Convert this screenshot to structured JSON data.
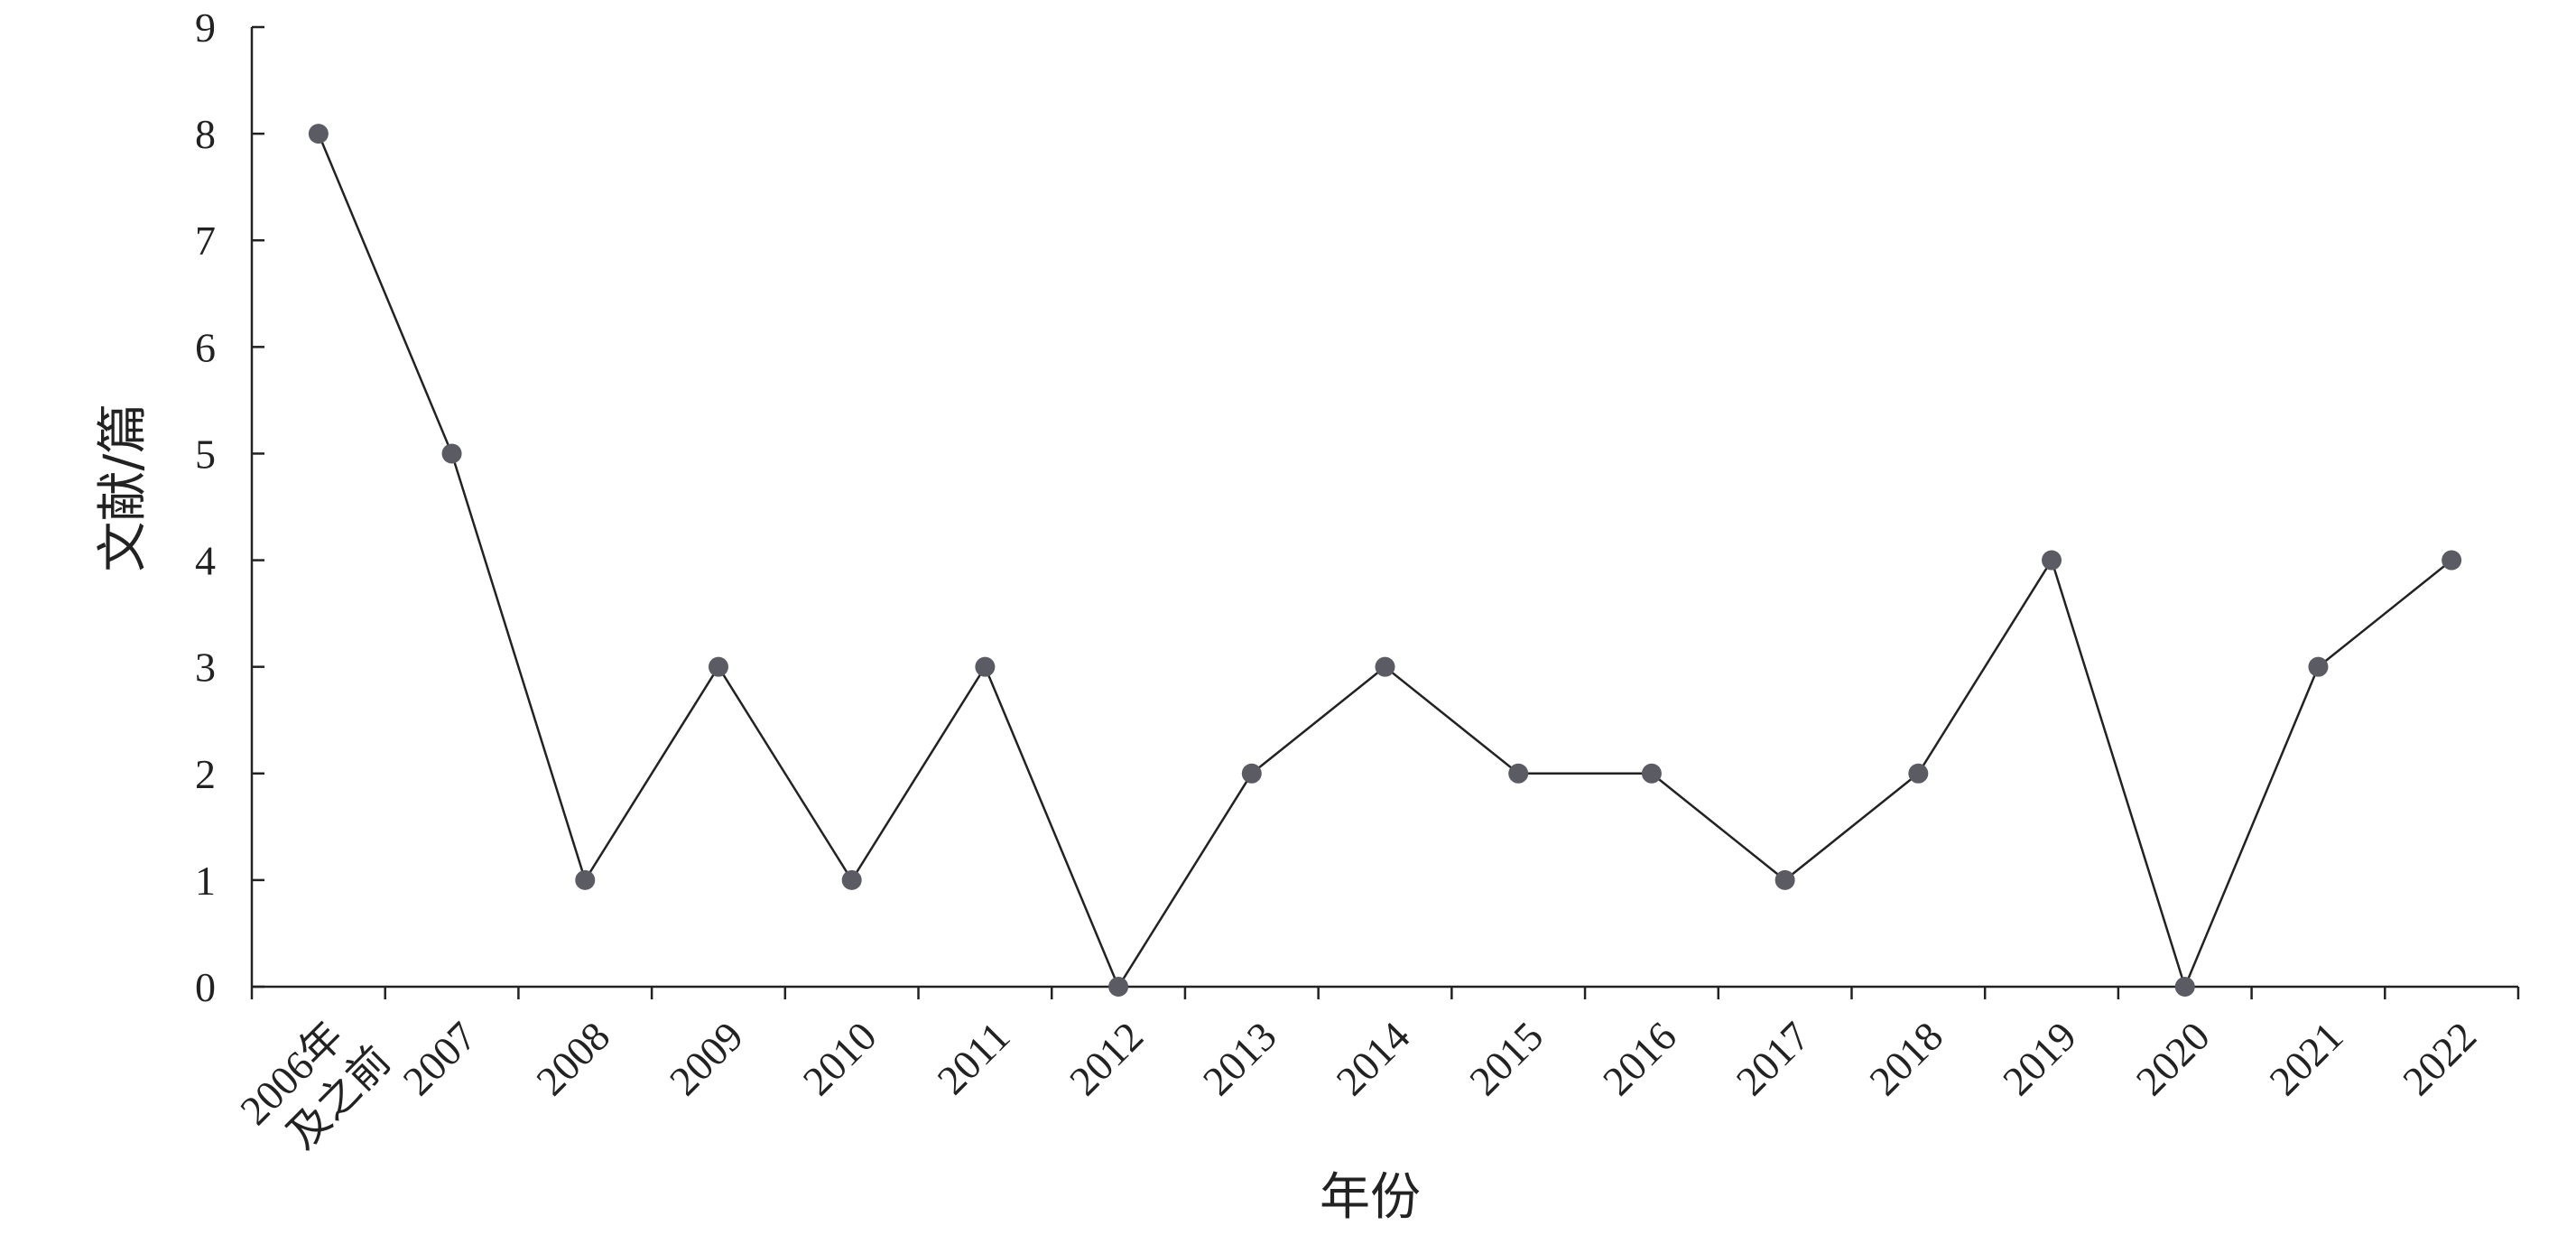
{
  "chart_data": {
    "type": "line",
    "categories": [
      "2006年及之前",
      "2007",
      "2008",
      "2009",
      "2010",
      "2011",
      "2012",
      "2013",
      "2014",
      "2015",
      "2016",
      "2017",
      "2018",
      "2019",
      "2020",
      "2021",
      "2022"
    ],
    "category_label_lines": [
      [
        "2006年",
        "及之前"
      ],
      [
        "2007"
      ],
      [
        "2008"
      ],
      [
        "2009"
      ],
      [
        "2010"
      ],
      [
        "2011"
      ],
      [
        "2012"
      ],
      [
        "2013"
      ],
      [
        "2014"
      ],
      [
        "2015"
      ],
      [
        "2016"
      ],
      [
        "2017"
      ],
      [
        "2018"
      ],
      [
        "2019"
      ],
      [
        "2020"
      ],
      [
        "2021"
      ],
      [
        "2022"
      ]
    ],
    "series": [
      {
        "values": [
          8,
          5,
          1,
          3,
          1,
          3,
          0,
          2,
          3,
          2,
          2,
          1,
          2,
          4,
          0,
          3,
          4
        ]
      }
    ],
    "xlabel": "年份",
    "ylabel": "文献/篇",
    "ylim": [
      0,
      9
    ],
    "yticks": [
      "0",
      "1",
      "2",
      "3",
      "4",
      "5",
      "6",
      "7",
      "8",
      "9"
    ],
    "grid": false,
    "marker_color": "#5a5b63",
    "line_color": "#222222"
  }
}
